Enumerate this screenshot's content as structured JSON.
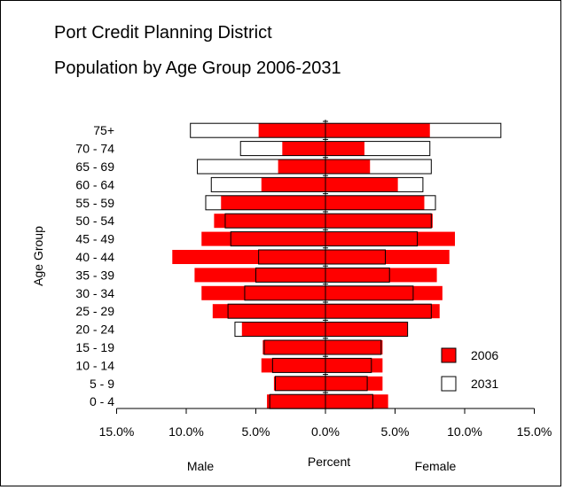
{
  "titles": {
    "line1": "Port Credit Planning District",
    "line2": "Population by Age Group 2006-2031"
  },
  "chart_data": {
    "type": "bar",
    "orientation": "horizontal-pyramid",
    "title": "Population by Age Group 2006-2031",
    "ylabel": "Age Group",
    "xlabel": "Percent",
    "left_label": "Male",
    "right_label": "Female",
    "categories": [
      "75+",
      "70 - 74",
      "65 - 69",
      "60 - 64",
      "55 - 59",
      "50 - 54",
      "45 - 49",
      "40 - 44",
      "35 - 39",
      "30 - 34",
      "25 - 29",
      "20 - 24",
      "15 - 19",
      "10 - 14",
      "5 - 9",
      "0 - 4"
    ],
    "x_ticks": [
      "15.0%",
      "10.0%",
      "5.0%",
      "0.0%",
      "5.0%",
      "10.0%",
      "15.0%"
    ],
    "xlim": [
      -15,
      15
    ],
    "series": [
      {
        "name": "2006",
        "color": "#ff0000",
        "male": [
          4.8,
          3.1,
          3.4,
          4.6,
          7.5,
          8.0,
          8.9,
          11.0,
          9.4,
          8.9,
          8.1,
          6.0,
          4.5,
          4.6,
          3.7,
          4.2
        ],
        "female": [
          7.5,
          2.8,
          3.2,
          5.2,
          7.1,
          7.7,
          9.3,
          8.9,
          8.0,
          8.4,
          8.2,
          5.9,
          4.1,
          4.1,
          4.1,
          4.5
        ]
      },
      {
        "name": "2031",
        "color": "#ffffff",
        "male": [
          9.7,
          6.1,
          9.2,
          8.2,
          8.6,
          7.2,
          6.8,
          4.8,
          5.0,
          5.8,
          7.0,
          6.5,
          4.4,
          3.8,
          3.6,
          4.0
        ],
        "female": [
          12.6,
          7.5,
          7.6,
          7.0,
          7.9,
          7.6,
          6.6,
          4.3,
          4.6,
          6.3,
          7.6,
          5.9,
          4.0,
          3.3,
          3.0,
          3.4
        ]
      }
    ],
    "legend": {
      "position": "right",
      "entries": [
        "2006",
        "2031"
      ]
    }
  }
}
